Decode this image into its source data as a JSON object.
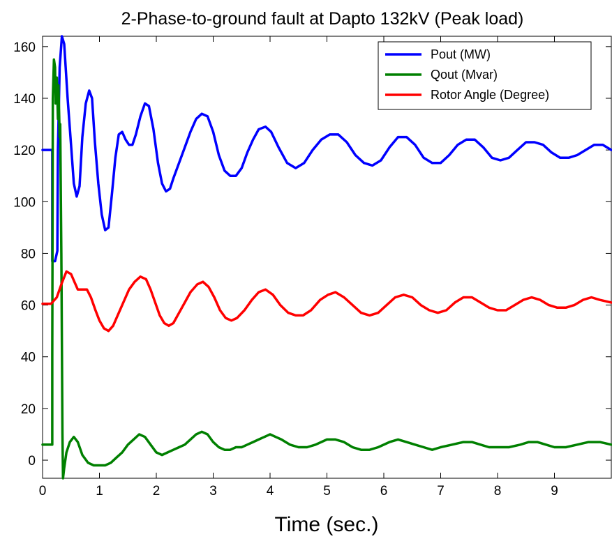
{
  "chart_data": {
    "type": "line",
    "title": "2-Phase-to-ground fault at Dapto 132kV (Peak load)",
    "xlabel": "Time (sec.)",
    "ylabel": "",
    "xlim": [
      0,
      10
    ],
    "ylim": [
      -7,
      164
    ],
    "xticks": [
      0,
      1,
      2,
      3,
      4,
      5,
      6,
      7,
      8,
      9
    ],
    "yticks": [
      0,
      20,
      40,
      60,
      80,
      100,
      120,
      140,
      160
    ],
    "grid": false,
    "legend_position": "top-right",
    "series": [
      {
        "name": "Pout (MW)",
        "color": "#0000ff",
        "points": [
          [
            0,
            120
          ],
          [
            0.17,
            120
          ],
          [
            0.17,
            77
          ],
          [
            0.22,
            77
          ],
          [
            0.26,
            81
          ],
          [
            0.27,
            120
          ],
          [
            0.3,
            152
          ],
          [
            0.34,
            164
          ],
          [
            0.38,
            161
          ],
          [
            0.44,
            140
          ],
          [
            0.5,
            122
          ],
          [
            0.55,
            107
          ],
          [
            0.6,
            102
          ],
          [
            0.65,
            106
          ],
          [
            0.7,
            125
          ],
          [
            0.76,
            138
          ],
          [
            0.82,
            143
          ],
          [
            0.87,
            140
          ],
          [
            0.92,
            123
          ],
          [
            0.98,
            107
          ],
          [
            1.04,
            95
          ],
          [
            1.1,
            89
          ],
          [
            1.16,
            90
          ],
          [
            1.22,
            103
          ],
          [
            1.28,
            117
          ],
          [
            1.34,
            126
          ],
          [
            1.4,
            127
          ],
          [
            1.46,
            124
          ],
          [
            1.52,
            122
          ],
          [
            1.58,
            122
          ],
          [
            1.64,
            126
          ],
          [
            1.72,
            133
          ],
          [
            1.8,
            138
          ],
          [
            1.87,
            137
          ],
          [
            1.95,
            128
          ],
          [
            2.03,
            115
          ],
          [
            2.1,
            107
          ],
          [
            2.17,
            104
          ],
          [
            2.24,
            105
          ],
          [
            2.3,
            109
          ],
          [
            2.4,
            115
          ],
          [
            2.5,
            121
          ],
          [
            2.6,
            127
          ],
          [
            2.7,
            132
          ],
          [
            2.8,
            134
          ],
          [
            2.9,
            133
          ],
          [
            3.0,
            127
          ],
          [
            3.1,
            118
          ],
          [
            3.2,
            112
          ],
          [
            3.3,
            110
          ],
          [
            3.4,
            110
          ],
          [
            3.5,
            113
          ],
          [
            3.6,
            119
          ],
          [
            3.7,
            124
          ],
          [
            3.8,
            128
          ],
          [
            3.92,
            129
          ],
          [
            4.02,
            127
          ],
          [
            4.15,
            121
          ],
          [
            4.3,
            115
          ],
          [
            4.45,
            113
          ],
          [
            4.6,
            115
          ],
          [
            4.75,
            120
          ],
          [
            4.9,
            124
          ],
          [
            5.05,
            126
          ],
          [
            5.2,
            126
          ],
          [
            5.35,
            123
          ],
          [
            5.5,
            118
          ],
          [
            5.65,
            115
          ],
          [
            5.8,
            114
          ],
          [
            5.95,
            116
          ],
          [
            6.1,
            121
          ],
          [
            6.25,
            125
          ],
          [
            6.4,
            125
          ],
          [
            6.55,
            122
          ],
          [
            6.7,
            117
          ],
          [
            6.85,
            115
          ],
          [
            7.0,
            115
          ],
          [
            7.15,
            118
          ],
          [
            7.3,
            122
          ],
          [
            7.45,
            124
          ],
          [
            7.6,
            124
          ],
          [
            7.75,
            121
          ],
          [
            7.9,
            117
          ],
          [
            8.05,
            116
          ],
          [
            8.2,
            117
          ],
          [
            8.35,
            120
          ],
          [
            8.5,
            123
          ],
          [
            8.65,
            123
          ],
          [
            8.8,
            122
          ],
          [
            8.95,
            119
          ],
          [
            9.1,
            117
          ],
          [
            9.25,
            117
          ],
          [
            9.4,
            118
          ],
          [
            9.55,
            120
          ],
          [
            9.7,
            122
          ],
          [
            9.85,
            122
          ],
          [
            10.0,
            120
          ]
        ]
      },
      {
        "name": "Qout (Mvar)",
        "color": "#008000",
        "points": [
          [
            0,
            6
          ],
          [
            0.17,
            6
          ],
          [
            0.17,
            40
          ],
          [
            0.18,
            140
          ],
          [
            0.2,
            155
          ],
          [
            0.22,
            152
          ],
          [
            0.23,
            138
          ],
          [
            0.25,
            148
          ],
          [
            0.27,
            132
          ],
          [
            0.28,
            145
          ],
          [
            0.3,
            125
          ],
          [
            0.31,
            130
          ],
          [
            0.33,
            80
          ],
          [
            0.35,
            10
          ],
          [
            0.36,
            -7
          ],
          [
            0.38,
            -3
          ],
          [
            0.42,
            3
          ],
          [
            0.48,
            7
          ],
          [
            0.55,
            9
          ],
          [
            0.62,
            7
          ],
          [
            0.7,
            2
          ],
          [
            0.8,
            -1
          ],
          [
            0.9,
            -2
          ],
          [
            1.0,
            -2
          ],
          [
            1.1,
            -2
          ],
          [
            1.2,
            -1
          ],
          [
            1.3,
            1
          ],
          [
            1.4,
            3
          ],
          [
            1.5,
            6
          ],
          [
            1.6,
            8
          ],
          [
            1.7,
            10
          ],
          [
            1.8,
            9
          ],
          [
            1.9,
            6
          ],
          [
            2.0,
            3
          ],
          [
            2.1,
            2
          ],
          [
            2.2,
            3
          ],
          [
            2.3,
            4
          ],
          [
            2.4,
            5
          ],
          [
            2.5,
            6
          ],
          [
            2.6,
            8
          ],
          [
            2.7,
            10
          ],
          [
            2.8,
            11
          ],
          [
            2.9,
            10
          ],
          [
            3.0,
            7
          ],
          [
            3.1,
            5
          ],
          [
            3.2,
            4
          ],
          [
            3.3,
            4
          ],
          [
            3.4,
            5
          ],
          [
            3.5,
            5
          ],
          [
            3.6,
            6
          ],
          [
            3.7,
            7
          ],
          [
            3.8,
            8
          ],
          [
            3.9,
            9
          ],
          [
            4.0,
            10
          ],
          [
            4.1,
            9
          ],
          [
            4.2,
            8
          ],
          [
            4.35,
            6
          ],
          [
            4.5,
            5
          ],
          [
            4.65,
            5
          ],
          [
            4.8,
            6
          ],
          [
            5.0,
            8
          ],
          [
            5.15,
            8
          ],
          [
            5.3,
            7
          ],
          [
            5.45,
            5
          ],
          [
            5.6,
            4
          ],
          [
            5.75,
            4
          ],
          [
            5.9,
            5
          ],
          [
            6.1,
            7
          ],
          [
            6.25,
            8
          ],
          [
            6.4,
            7
          ],
          [
            6.55,
            6
          ],
          [
            6.7,
            5
          ],
          [
            6.85,
            4
          ],
          [
            7.0,
            5
          ],
          [
            7.2,
            6
          ],
          [
            7.4,
            7
          ],
          [
            7.55,
            7
          ],
          [
            7.7,
            6
          ],
          [
            7.85,
            5
          ],
          [
            8.0,
            5
          ],
          [
            8.2,
            5
          ],
          [
            8.4,
            6
          ],
          [
            8.55,
            7
          ],
          [
            8.7,
            7
          ],
          [
            8.85,
            6
          ],
          [
            9.0,
            5
          ],
          [
            9.2,
            5
          ],
          [
            9.4,
            6
          ],
          [
            9.6,
            7
          ],
          [
            9.8,
            7
          ],
          [
            10.0,
            6
          ]
        ]
      },
      {
        "name": "Rotor Angle (Degree)",
        "color": "#ff0000",
        "points": [
          [
            0,
            60.5
          ],
          [
            0.15,
            60.5
          ],
          [
            0.25,
            63
          ],
          [
            0.33,
            68
          ],
          [
            0.42,
            73
          ],
          [
            0.5,
            72
          ],
          [
            0.56,
            69
          ],
          [
            0.62,
            66
          ],
          [
            0.7,
            66
          ],
          [
            0.78,
            66
          ],
          [
            0.85,
            63
          ],
          [
            0.93,
            58
          ],
          [
            1.0,
            54
          ],
          [
            1.08,
            51
          ],
          [
            1.16,
            50
          ],
          [
            1.24,
            52
          ],
          [
            1.32,
            56
          ],
          [
            1.42,
            61
          ],
          [
            1.52,
            66
          ],
          [
            1.62,
            69
          ],
          [
            1.72,
            71
          ],
          [
            1.82,
            70
          ],
          [
            1.9,
            66
          ],
          [
            1.98,
            61
          ],
          [
            2.06,
            56
          ],
          [
            2.14,
            53
          ],
          [
            2.22,
            52
          ],
          [
            2.3,
            53
          ],
          [
            2.4,
            57
          ],
          [
            2.5,
            61
          ],
          [
            2.6,
            65
          ],
          [
            2.72,
            68
          ],
          [
            2.82,
            69
          ],
          [
            2.92,
            67
          ],
          [
            3.02,
            63
          ],
          [
            3.12,
            58
          ],
          [
            3.22,
            55
          ],
          [
            3.32,
            54
          ],
          [
            3.42,
            55
          ],
          [
            3.55,
            58
          ],
          [
            3.68,
            62
          ],
          [
            3.8,
            65
          ],
          [
            3.92,
            66
          ],
          [
            4.05,
            64
          ],
          [
            4.18,
            60
          ],
          [
            4.32,
            57
          ],
          [
            4.45,
            56
          ],
          [
            4.58,
            56
          ],
          [
            4.72,
            58
          ],
          [
            4.88,
            62
          ],
          [
            5.02,
            64
          ],
          [
            5.15,
            65
          ],
          [
            5.3,
            63
          ],
          [
            5.45,
            60
          ],
          [
            5.6,
            57
          ],
          [
            5.75,
            56
          ],
          [
            5.9,
            57
          ],
          [
            6.05,
            60
          ],
          [
            6.2,
            63
          ],
          [
            6.35,
            64
          ],
          [
            6.5,
            63
          ],
          [
            6.65,
            60
          ],
          [
            6.8,
            58
          ],
          [
            6.95,
            57
          ],
          [
            7.1,
            58
          ],
          [
            7.25,
            61
          ],
          [
            7.4,
            63
          ],
          [
            7.55,
            63
          ],
          [
            7.7,
            61
          ],
          [
            7.85,
            59
          ],
          [
            8.0,
            58
          ],
          [
            8.15,
            58
          ],
          [
            8.3,
            60
          ],
          [
            8.45,
            62
          ],
          [
            8.6,
            63
          ],
          [
            8.75,
            62
          ],
          [
            8.9,
            60
          ],
          [
            9.05,
            59
          ],
          [
            9.2,
            59
          ],
          [
            9.35,
            60
          ],
          [
            9.5,
            62
          ],
          [
            9.65,
            63
          ],
          [
            9.8,
            62
          ],
          [
            10.0,
            61
          ]
        ]
      }
    ]
  }
}
